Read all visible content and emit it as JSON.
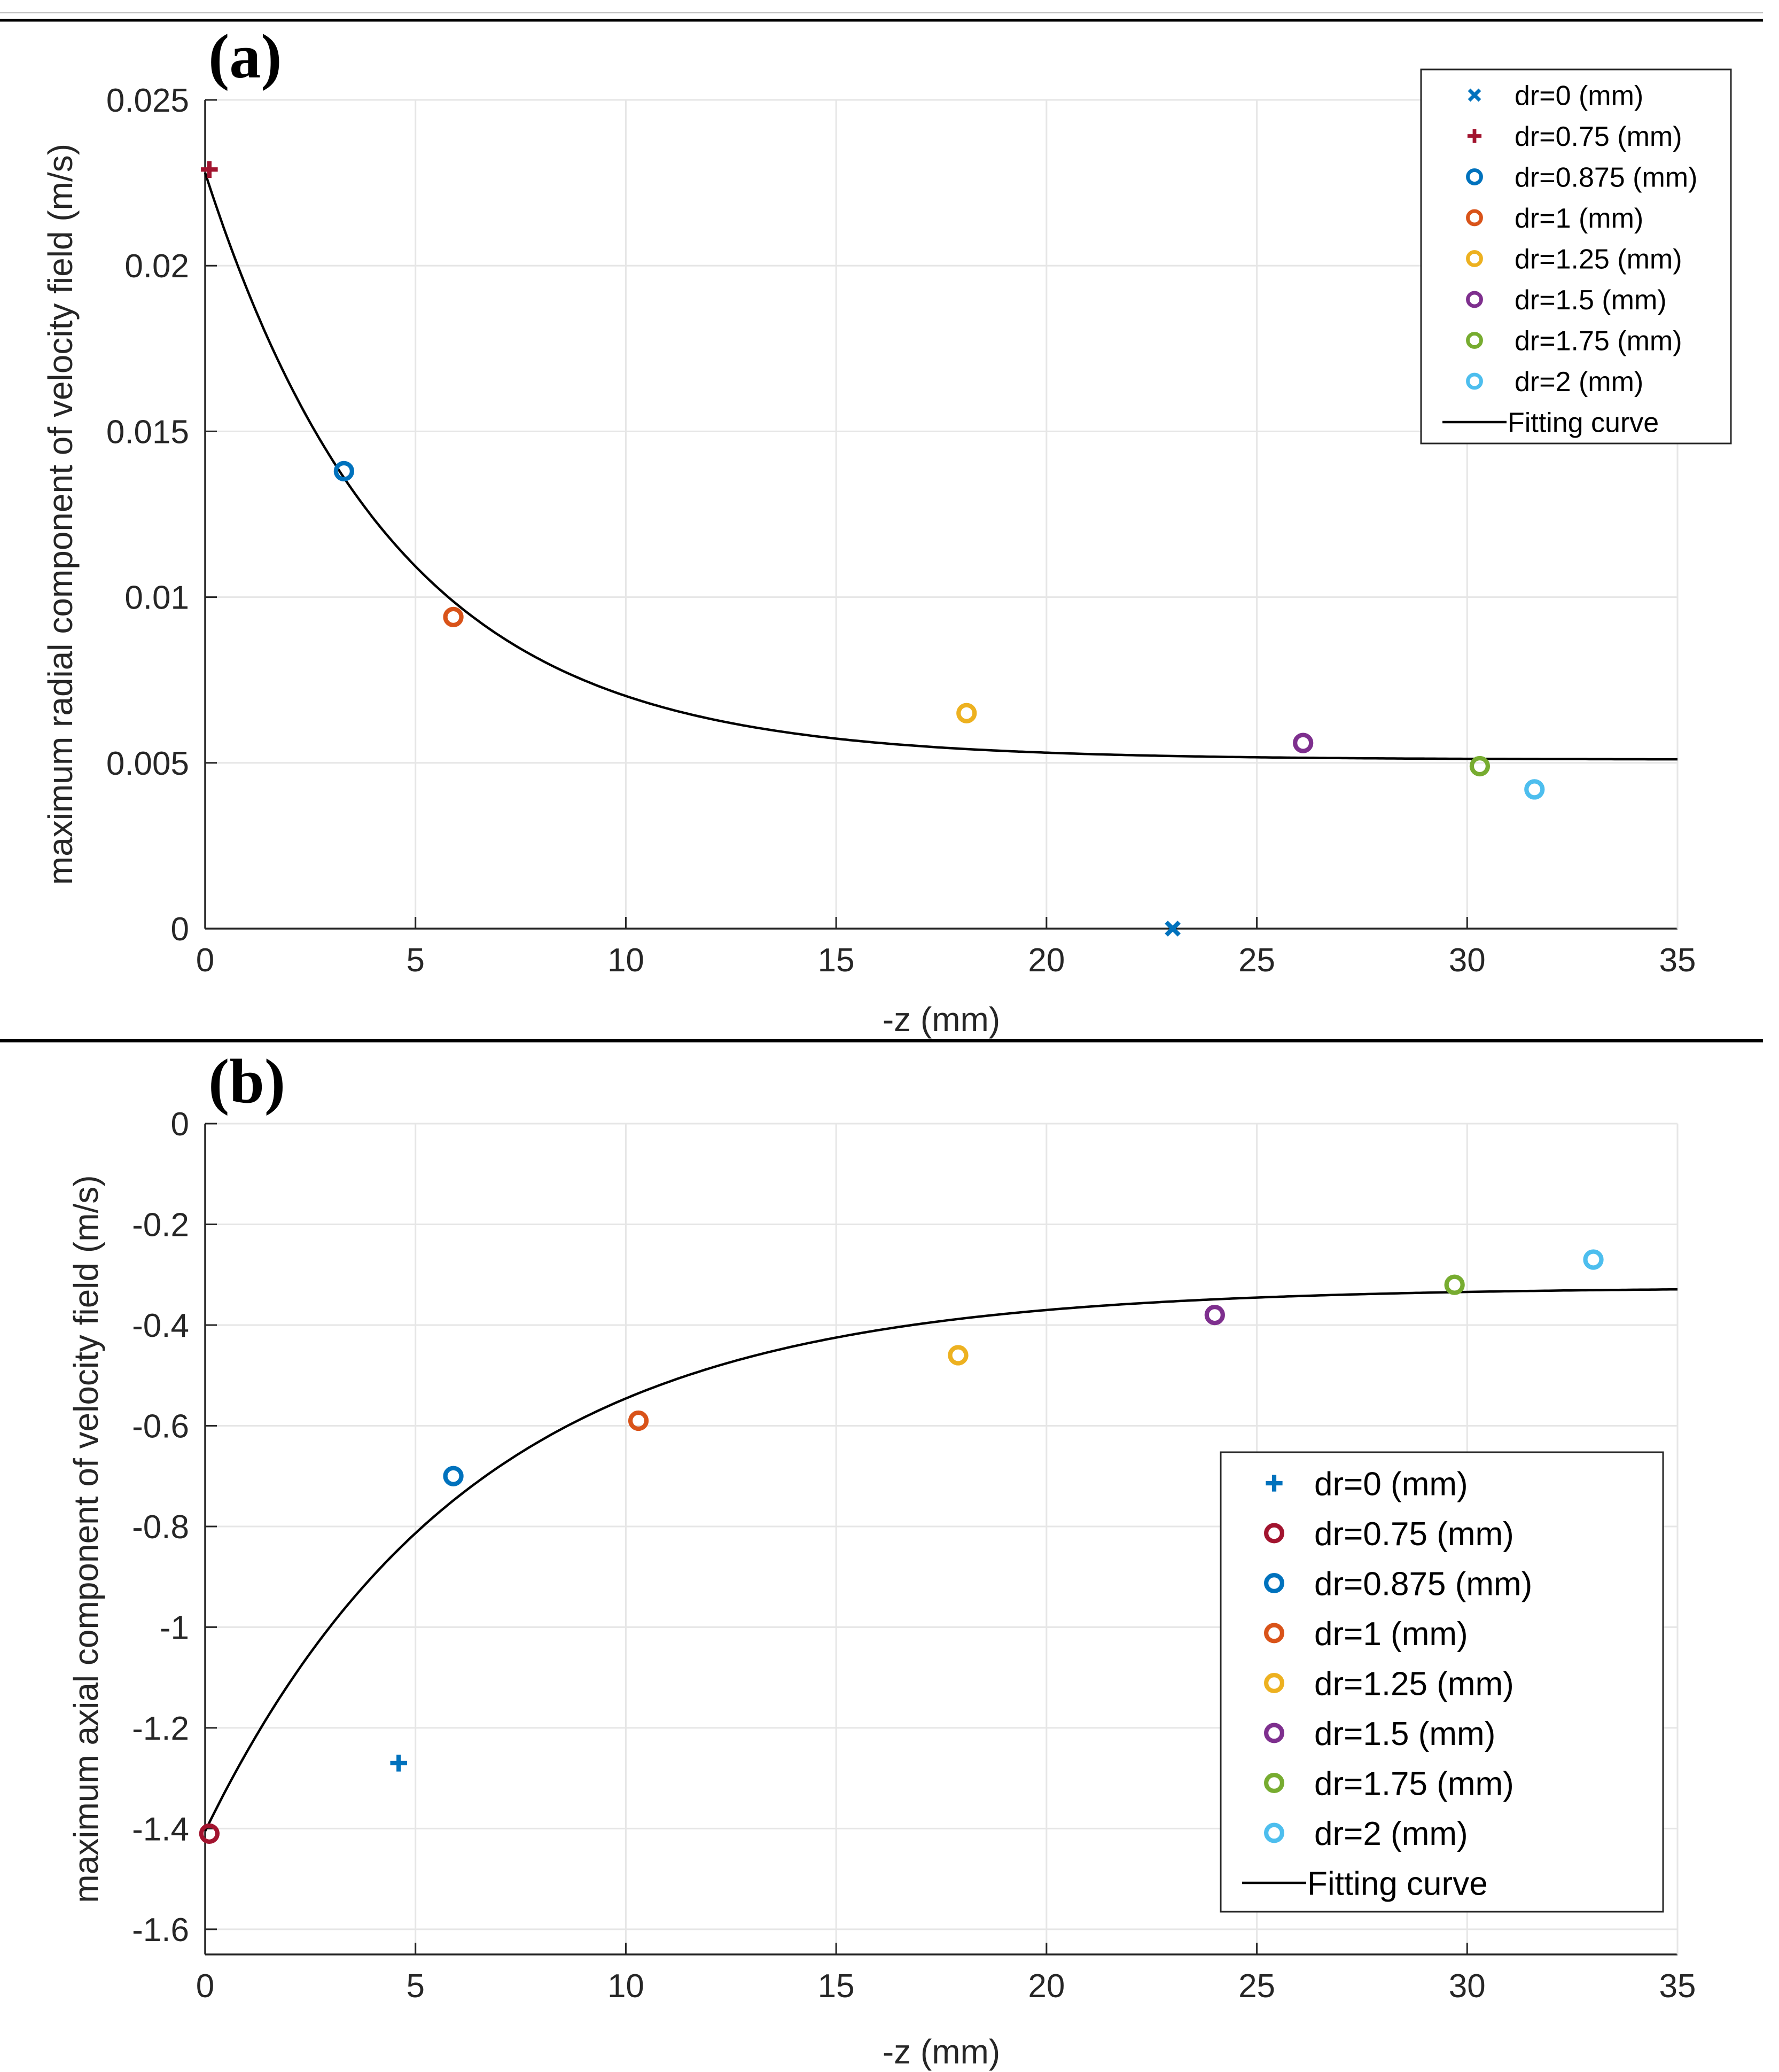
{
  "chart_data": [
    {
      "type": "scatter",
      "panel_label": "(a)",
      "xlabel": "-z (mm)",
      "ylabel": "maximum radial component of velocity field (m/s)",
      "xlim": [
        0,
        35
      ],
      "ylim": [
        0,
        0.025
      ],
      "xticks": [
        "0",
        "5",
        "10",
        "15",
        "20",
        "25",
        "30",
        "35"
      ],
      "yticks": [
        "0",
        "0.005",
        "0.01",
        "0.015",
        "0.02",
        "0.025"
      ],
      "grid": true,
      "legend_position": "top-right",
      "series": [
        {
          "name": "dr=0 (mm)",
          "marker": "x",
          "color": "#0072BD",
          "points": [
            [
              23.0,
              0.0
            ]
          ]
        },
        {
          "name": "dr=0.75 (mm)",
          "marker": "+",
          "color": "#A2142F",
          "points": [
            [
              0.1,
              0.0229
            ]
          ]
        },
        {
          "name": "dr=0.875 (mm)",
          "marker": "o",
          "color": "#0072BD",
          "points": [
            [
              3.3,
              0.0138
            ]
          ]
        },
        {
          "name": "dr=1 (mm)",
          "marker": "o",
          "color": "#D95319",
          "points": [
            [
              5.9,
              0.0094
            ]
          ]
        },
        {
          "name": "dr=1.25 (mm)",
          "marker": "o",
          "color": "#EDB120",
          "points": [
            [
              18.1,
              0.0065
            ]
          ]
        },
        {
          "name": "dr=1.5 (mm)",
          "marker": "o",
          "color": "#7E2F8E",
          "points": [
            [
              26.1,
              0.0056
            ]
          ]
        },
        {
          "name": "dr=1.75 (mm)",
          "marker": "o",
          "color": "#77AC30",
          "points": [
            [
              30.3,
              0.0049
            ]
          ]
        },
        {
          "name": "dr=2 (mm)",
          "marker": "o",
          "color": "#4DBEEE",
          "points": [
            [
              31.6,
              0.0042
            ]
          ]
        },
        {
          "name": "Fitting curve",
          "marker": "line",
          "color": "#000000",
          "fit": {
            "form": "a*exp(-x/t)+c",
            "a": 0.0177,
            "c": 0.0051,
            "t": 4.5
          }
        }
      ]
    },
    {
      "type": "scatter",
      "panel_label": "(b)",
      "xlabel": "-z (mm)",
      "ylabel": "maximum axial component of velocity field (m/s)",
      "xlim": [
        0,
        35
      ],
      "ylim": [
        -1.65,
        0
      ],
      "xticks": [
        "0",
        "5",
        "10",
        "15",
        "20",
        "25",
        "30",
        "35"
      ],
      "yticks": [
        "0",
        "-0.2",
        "-0.4",
        "-0.6",
        "-0.8",
        "-1",
        "-1.2",
        "-1.4",
        "-1.6"
      ],
      "grid": true,
      "legend_position": "bottom-right",
      "series": [
        {
          "name": "dr=0 (mm)",
          "marker": "+",
          "color": "#0072BD",
          "points": [
            [
              4.6,
              -1.27
            ]
          ]
        },
        {
          "name": "dr=0.75 (mm)",
          "marker": "o",
          "color": "#A2142F",
          "points": [
            [
              0.1,
              -1.41
            ]
          ]
        },
        {
          "name": "dr=0.875 (mm)",
          "marker": "o",
          "color": "#0072BD",
          "points": [
            [
              5.9,
              -0.7
            ]
          ]
        },
        {
          "name": "dr=1 (mm)",
          "marker": "o",
          "color": "#D95319",
          "points": [
            [
              10.3,
              -0.59
            ]
          ]
        },
        {
          "name": "dr=1.25 (mm)",
          "marker": "o",
          "color": "#EDB120",
          "points": [
            [
              17.9,
              -0.46
            ]
          ]
        },
        {
          "name": "dr=1.5 (mm)",
          "marker": "o",
          "color": "#7E2F8E",
          "points": [
            [
              24.0,
              -0.38
            ]
          ]
        },
        {
          "name": "dr=1.75 (mm)",
          "marker": "o",
          "color": "#77AC30",
          "points": [
            [
              29.7,
              -0.32
            ]
          ]
        },
        {
          "name": "dr=2 (mm)",
          "marker": "o",
          "color": "#4DBEEE",
          "points": [
            [
              33.0,
              -0.27
            ]
          ]
        },
        {
          "name": "Fitting curve",
          "marker": "line",
          "color": "#000000",
          "fit": {
            "form": "a*exp(-x/t)+c",
            "a": -1.08,
            "c": -0.325,
            "t": 6.3
          }
        }
      ]
    }
  ]
}
